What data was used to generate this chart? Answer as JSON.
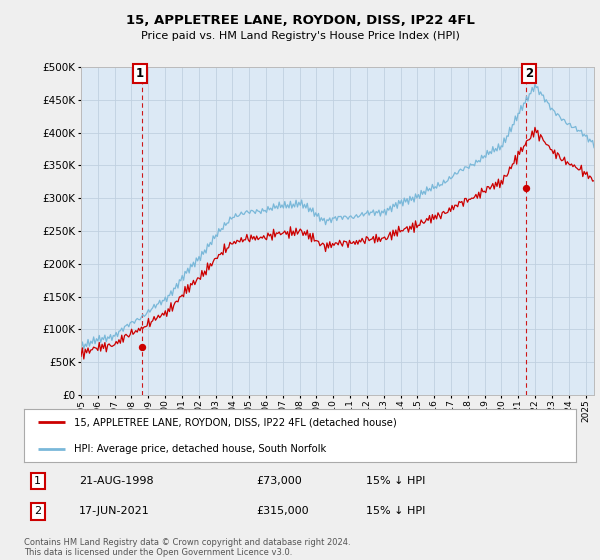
{
  "title": "15, APPLETREE LANE, ROYDON, DISS, IP22 4FL",
  "subtitle": "Price paid vs. HM Land Registry's House Price Index (HPI)",
  "ytick_values": [
    0,
    50000,
    100000,
    150000,
    200000,
    250000,
    300000,
    350000,
    400000,
    450000,
    500000
  ],
  "xlim_start": 1995.0,
  "xlim_end": 2025.5,
  "ylim": [
    0,
    500000
  ],
  "hpi_color": "#7ab8d9",
  "price_color": "#cc0000",
  "sale1_t": 1998.64,
  "sale1_y": 73000,
  "sale2_t": 2021.46,
  "sale2_y": 315000,
  "annotation1_label": "1",
  "annotation2_label": "2",
  "legend_line1": "15, APPLETREE LANE, ROYDON, DISS, IP22 4FL (detached house)",
  "legend_line2": "HPI: Average price, detached house, South Norfolk",
  "table_row1": [
    "1",
    "21-AUG-1998",
    "£73,000",
    "15% ↓ HPI"
  ],
  "table_row2": [
    "2",
    "17-JUN-2021",
    "£315,000",
    "15% ↓ HPI"
  ],
  "footer": "Contains HM Land Registry data © Crown copyright and database right 2024.\nThis data is licensed under the Open Government Licence v3.0.",
  "background_color": "#efefef",
  "plot_bg_color": "#dce9f5",
  "grid_color": "#c0d0e0"
}
